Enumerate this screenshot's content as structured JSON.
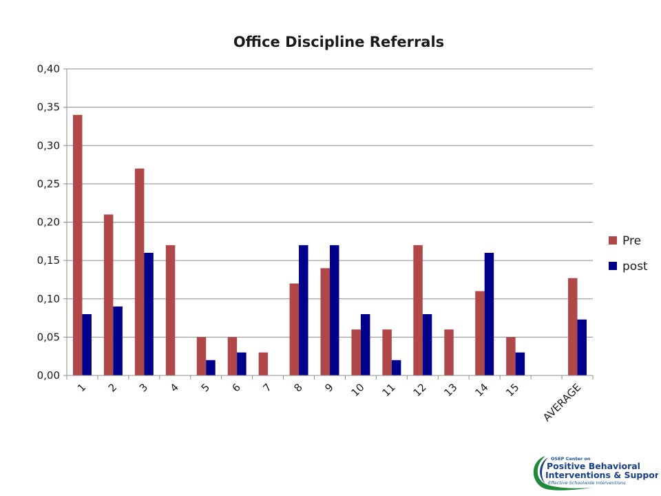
{
  "chart_data": {
    "type": "bar",
    "title": "Office Discipline Referrals",
    "xlabel": "",
    "ylabel": "",
    "categories": [
      "1",
      "2",
      "3",
      "4",
      "5",
      "6",
      "7",
      "8",
      "9",
      "10",
      "11",
      "12",
      "13",
      "14",
      "15",
      "",
      "AVERAGE"
    ],
    "series": [
      {
        "name": "Pre",
        "color": "#b0484a",
        "values": [
          0.34,
          0.21,
          0.27,
          0.17,
          0.05,
          0.05,
          0.03,
          0.12,
          0.14,
          0.06,
          0.06,
          0.17,
          0.06,
          0.11,
          0.05,
          null,
          0.127
        ]
      },
      {
        "name": "post",
        "color": "#00008b",
        "values": [
          0.08,
          0.09,
          0.16,
          null,
          0.02,
          0.03,
          null,
          0.17,
          0.17,
          0.08,
          0.02,
          0.08,
          null,
          0.16,
          0.03,
          null,
          0.073
        ]
      }
    ],
    "yticks": [
      "0,00",
      "0,05",
      "0,10",
      "0,15",
      "0,20",
      "0,25",
      "0,30",
      "0,35",
      "0,40"
    ],
    "ylim": [
      0,
      0.4
    ],
    "ystep": 0.05,
    "grid": true,
    "legend": "right"
  },
  "logo": {
    "line1": "OSEP Center on",
    "line2": "Positive Behavioral",
    "line3": "Interventions & Supports",
    "line4": "Effective Schoolwide Interventions"
  }
}
